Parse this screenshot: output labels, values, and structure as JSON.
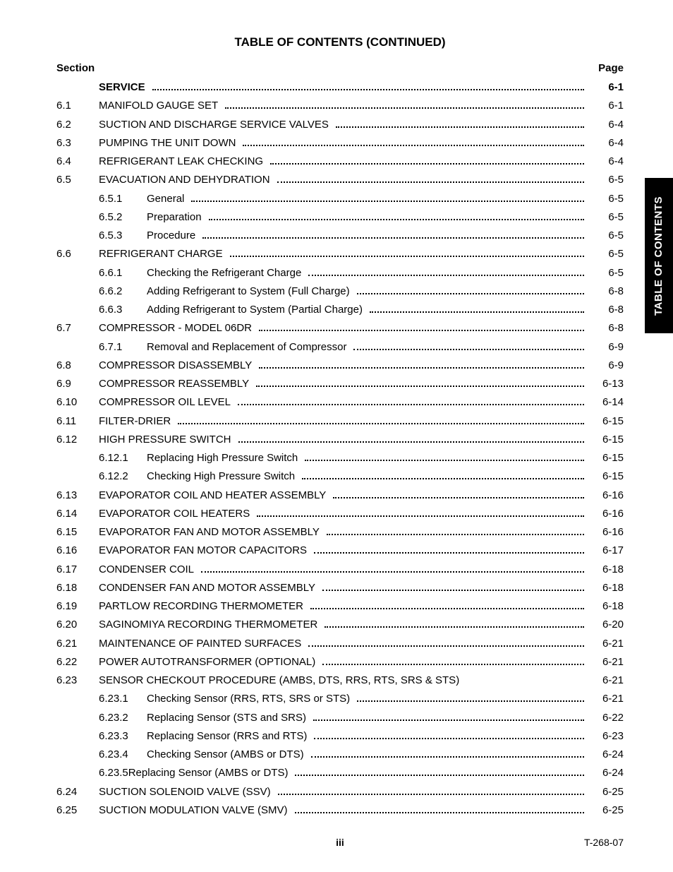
{
  "title": "TABLE OF CONTENTS (CONTINUED)",
  "header_left": "Section",
  "header_right": "Page",
  "side_tab": "TABLE OF CONTENTS",
  "footer_center": "iii",
  "footer_right": "T-268-07",
  "entries": [
    {
      "num": "",
      "sub": "",
      "text": "SERVICE",
      "page": "6-1",
      "bold": true,
      "shift": -60
    },
    {
      "num": "6.1",
      "sub": "",
      "text": "MANIFOLD GAUGE SET",
      "page": "6-1"
    },
    {
      "num": "6.2",
      "sub": "",
      "text": "SUCTION AND DISCHARGE SERVICE VALVES",
      "page": "6-4"
    },
    {
      "num": "6.3",
      "sub": "",
      "text": "PUMPING THE UNIT DOWN",
      "page": "6-4"
    },
    {
      "num": "6.4",
      "sub": "",
      "text": "REFRIGERANT LEAK CHECKING",
      "page": "6-4"
    },
    {
      "num": "6.5",
      "sub": "",
      "text": "EVACUATION AND DEHYDRATION",
      "page": "6-5"
    },
    {
      "num": "",
      "sub": "6.5.1",
      "text": "General",
      "page": "6-5"
    },
    {
      "num": "",
      "sub": "6.5.2",
      "text": "Preparation",
      "page": "6-5"
    },
    {
      "num": "",
      "sub": "6.5.3",
      "text": "Procedure",
      "page": "6-5"
    },
    {
      "num": "6.6",
      "sub": "",
      "text": "REFRIGERANT CHARGE",
      "page": "6-5"
    },
    {
      "num": "",
      "sub": "6.6.1",
      "text": "Checking the Refrigerant Charge",
      "page": "6-5"
    },
    {
      "num": "",
      "sub": "6.6.2",
      "text": "Adding Refrigerant to System (Full Charge)",
      "page": "6-8"
    },
    {
      "num": "",
      "sub": "6.6.3",
      "text": "Adding Refrigerant to System (Partial Charge)",
      "page": "6-8"
    },
    {
      "num": "6.7",
      "sub": "",
      "text": "COMPRESSOR - MODEL 06DR",
      "page": "6-8"
    },
    {
      "num": "",
      "sub": "6.7.1",
      "text": "Removal and Replacement of Compressor",
      "page": "6-9"
    },
    {
      "num": "6.8",
      "sub": "",
      "text": "COMPRESSOR DISASSEMBLY",
      "page": "6-9"
    },
    {
      "num": "6.9",
      "sub": "",
      "text": "COMPRESSOR REASSEMBLY",
      "page": "6-13"
    },
    {
      "num": "6.10",
      "sub": "",
      "text": "COMPRESSOR OIL LEVEL",
      "page": "6-14"
    },
    {
      "num": "6.11",
      "sub": "",
      "text": "FILTER-DRIER",
      "page": "6-15"
    },
    {
      "num": "6.12",
      "sub": "",
      "text": "HIGH PRESSURE SWITCH",
      "page": "6-15"
    },
    {
      "num": "",
      "sub": "6.12.1",
      "text": "Replacing High Pressure Switch",
      "page": "6-15"
    },
    {
      "num": "",
      "sub": "6.12.2",
      "text": "Checking High Pressure Switch",
      "page": "6-15"
    },
    {
      "num": "6.13",
      "sub": "",
      "text": "EVAPORATOR COIL AND HEATER ASSEMBLY",
      "page": "6-16"
    },
    {
      "num": "6.14",
      "sub": "",
      "text": "EVAPORATOR COIL HEATERS",
      "page": "6-16"
    },
    {
      "num": "6.15",
      "sub": "",
      "text": "EVAPORATOR FAN AND MOTOR ASSEMBLY",
      "page": "6-16"
    },
    {
      "num": "6.16",
      "sub": "",
      "text": "EVAPORATOR FAN MOTOR CAPACITORS",
      "page": "6-17"
    },
    {
      "num": "6.17",
      "sub": "",
      "text": "CONDENSER COIL",
      "page": "6-18"
    },
    {
      "num": "6.18",
      "sub": "",
      "text": "CONDENSER FAN AND MOTOR ASSEMBLY",
      "page": "6-18"
    },
    {
      "num": "6.19",
      "sub": "",
      "text": "PARTLOW RECORDING THERMOMETER",
      "page": "6-18"
    },
    {
      "num": "6.20",
      "sub": "",
      "text": "SAGINOMIYA RECORDING THERMOMETER",
      "page": "6-20"
    },
    {
      "num": "6.21",
      "sub": "",
      "text": "MAINTENANCE OF PAINTED SURFACES",
      "page": "6-21"
    },
    {
      "num": "6.22",
      "sub": "",
      "text": "POWER AUTOTRANSFORMER (OPTIONAL)",
      "page": "6-21"
    },
    {
      "num": "6.23",
      "sub": "",
      "text": "SENSOR CHECKOUT PROCEDURE (AMBS, DTS, RRS, RTS, SRS & STS)",
      "page": "6-21",
      "nodots": true
    },
    {
      "num": "",
      "sub": "6.23.1",
      "text": "Checking Sensor (RRS, RTS, SRS or STS)",
      "page": "6-21"
    },
    {
      "num": "",
      "sub": "6.23.2",
      "text": "Replacing Sensor (STS and SRS)",
      "page": "6-22"
    },
    {
      "num": "",
      "sub": "6.23.3",
      "text": "Replacing Sensor (RRS and RTS)",
      "page": "6-23"
    },
    {
      "num": "",
      "sub": "6.23.4",
      "text": "Checking Sensor (AMBS or DTS)",
      "page": "6-24"
    },
    {
      "num": "",
      "sub": "6.23.5",
      "text": "Replacing Sensor (AMBS or DTS)",
      "page": "6-24",
      "joined": true
    },
    {
      "num": "6.24",
      "sub": "",
      "text": "SUCTION SOLENOID VALVE (SSV)",
      "page": "6-25"
    },
    {
      "num": "6.25",
      "sub": "",
      "text": "SUCTION MODULATION VALVE (SMV)",
      "page": "6-25"
    }
  ]
}
